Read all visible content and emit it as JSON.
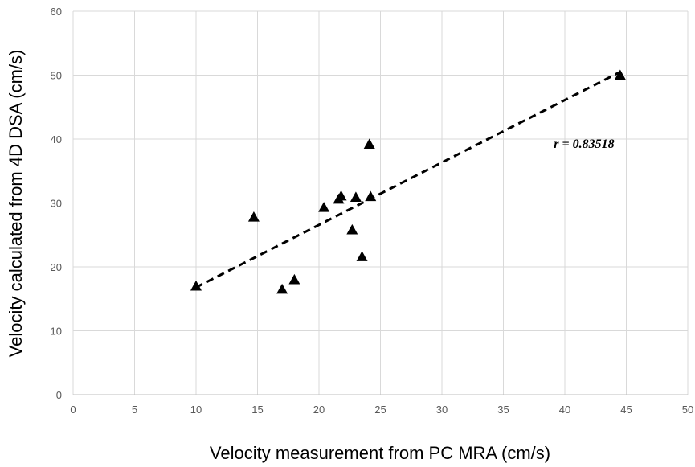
{
  "chart_data": {
    "type": "scatter",
    "title": "",
    "xlabel": "Velocity measurement from PC MRA (cm/s)",
    "ylabel": "Velocity calculated from 4D DSA (cm/s)",
    "xlim": [
      0,
      50
    ],
    "ylim": [
      0,
      60
    ],
    "x_ticks": [
      0,
      5,
      10,
      15,
      20,
      25,
      30,
      35,
      40,
      45,
      50
    ],
    "y_ticks": [
      0,
      10,
      20,
      30,
      40,
      50,
      60
    ],
    "grid": true,
    "legend": "none",
    "marker": "triangle",
    "marker_color": "#000000",
    "points": [
      {
        "x": 10.0,
        "y": 17.0
      },
      {
        "x": 14.7,
        "y": 27.8
      },
      {
        "x": 17.0,
        "y": 16.5
      },
      {
        "x": 18.0,
        "y": 18.0
      },
      {
        "x": 20.4,
        "y": 29.3
      },
      {
        "x": 21.6,
        "y": 30.6
      },
      {
        "x": 21.8,
        "y": 31.1
      },
      {
        "x": 22.7,
        "y": 25.8
      },
      {
        "x": 23.0,
        "y": 30.9
      },
      {
        "x": 23.5,
        "y": 21.6
      },
      {
        "x": 24.1,
        "y": 39.2
      },
      {
        "x": 24.2,
        "y": 31.0
      },
      {
        "x": 44.5,
        "y": 50.0
      }
    ],
    "trendline": {
      "style": "dashed",
      "color": "#000000",
      "from": {
        "x": 10.0,
        "y": 16.8
      },
      "to": {
        "x": 44.5,
        "y": 50.5
      }
    },
    "annotations": [
      {
        "text": "r = 0.83518",
        "x": 39.1,
        "y": 38.6
      }
    ]
  }
}
